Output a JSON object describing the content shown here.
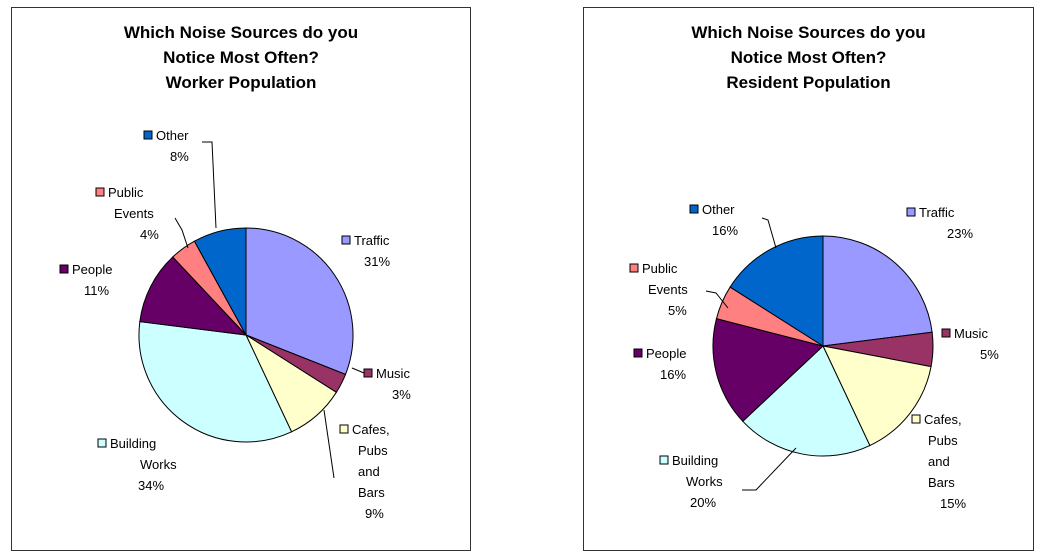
{
  "chart_data": [
    {
      "type": "pie",
      "title": [
        "Which Noise Sources do you",
        "Notice Most Often?",
        "Worker Population"
      ],
      "slices": [
        {
          "name": "Traffic",
          "value": 31,
          "label": "31%",
          "color": "#9999FF"
        },
        {
          "name": "Music",
          "value": 3,
          "label": "3%",
          "color": "#993366"
        },
        {
          "name": "Cafes, Pubs and Bars",
          "value": 9,
          "label": "9%",
          "color": "#FFFFCC"
        },
        {
          "name": "Building Works",
          "value": 34,
          "label": "34%",
          "color": "#CCFFFF"
        },
        {
          "name": "People",
          "value": 11,
          "label": "11%",
          "color": "#660066"
        },
        {
          "name": "Public Events",
          "value": 4,
          "label": "4%",
          "color": "#FF8080"
        },
        {
          "name": "Other",
          "value": 8,
          "label": "8%",
          "color": "#0066CC"
        }
      ]
    },
    {
      "type": "pie",
      "title": [
        "Which Noise Sources do you",
        "Notice Most Often?",
        "Resident Population"
      ],
      "slices": [
        {
          "name": "Traffic",
          "value": 23,
          "label": "23%",
          "color": "#9999FF"
        },
        {
          "name": "Music",
          "value": 5,
          "label": "5%",
          "color": "#993366"
        },
        {
          "name": "Cafes, Pubs and Bars",
          "value": 15,
          "label": "15%",
          "color": "#FFFFCC"
        },
        {
          "name": "Building Works",
          "value": 20,
          "label": "20%",
          "color": "#CCFFFF"
        },
        {
          "name": "People",
          "value": 16,
          "label": "16%",
          "color": "#660066"
        },
        {
          "name": "Public Events",
          "value": 5,
          "label": "5%",
          "color": "#FF8080"
        },
        {
          "name": "Other",
          "value": 16,
          "label": "16%",
          "color": "#0066CC"
        }
      ]
    }
  ]
}
